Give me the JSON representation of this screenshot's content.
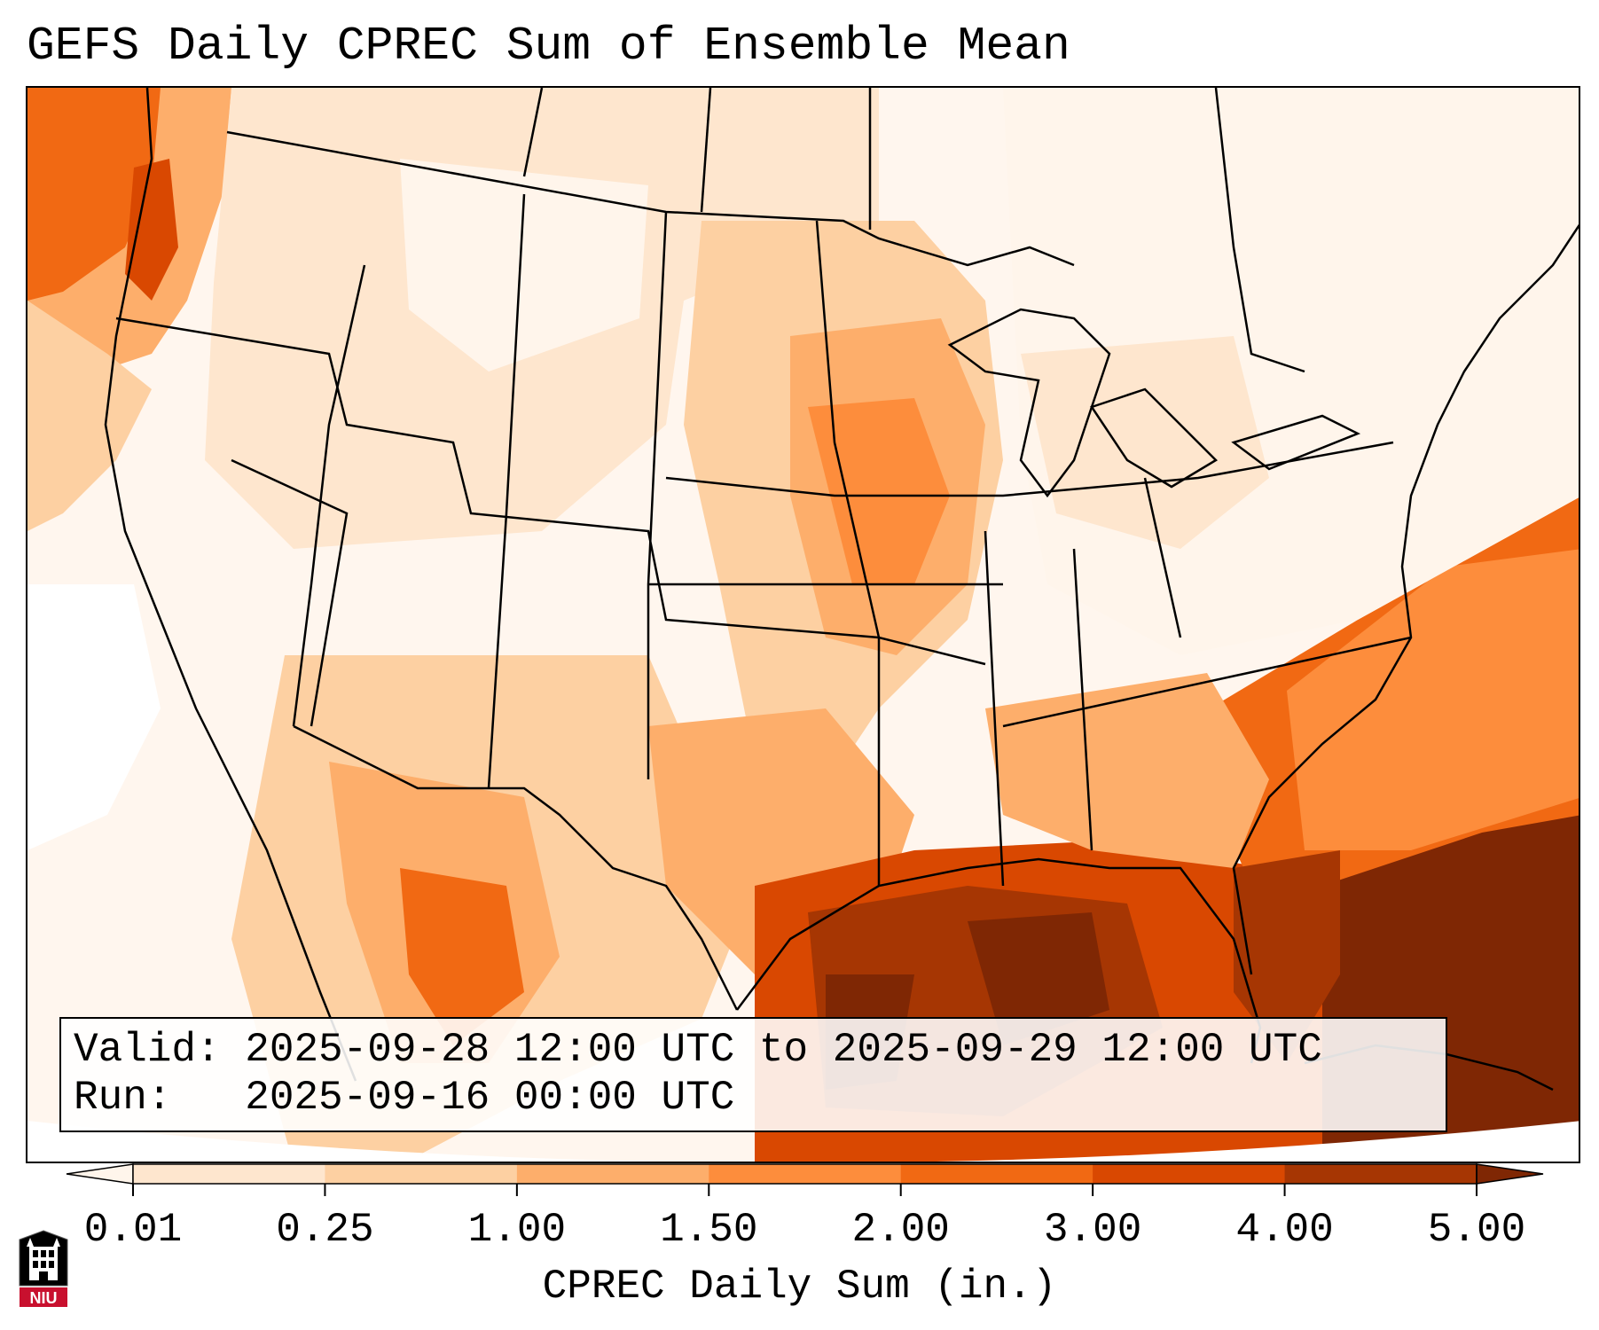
{
  "title": "GEFS Daily CPREC Sum of Ensemble Mean",
  "info": {
    "valid_line": "Valid: 2025-09-28 12:00 UTC to 2025-09-29 12:00 UTC",
    "run_line": "Run:   2025-09-16 00:00 UTC"
  },
  "colorbar": {
    "label": "CPREC Daily Sum (in.)",
    "ticks": [
      "0.01",
      "0.25",
      "1.00",
      "1.50",
      "2.00",
      "3.00",
      "4.00",
      "5.00"
    ],
    "colors": [
      "#fff5eb",
      "#fee6ce",
      "#fdd0a2",
      "#fdae6b",
      "#fd8d3c",
      "#f16913",
      "#d94801",
      "#a63603",
      "#7f2704"
    ],
    "extend": "both"
  },
  "logo": {
    "text": "NIU",
    "colors": {
      "red": "#c8102e",
      "black": "#000000"
    }
  }
}
